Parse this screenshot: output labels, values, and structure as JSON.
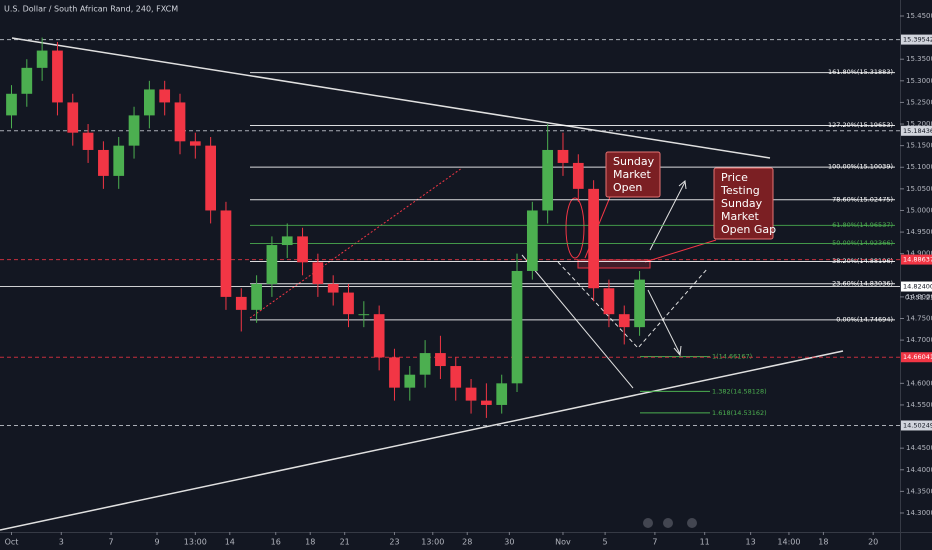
{
  "chart_data": {
    "type": "candlestick",
    "title": "U.S. Dollar / South African Rand, 240, FXCM",
    "x": [
      0,
      4,
      8,
      12,
      16,
      20,
      24,
      28,
      32,
      36,
      40,
      44,
      48,
      52,
      56,
      60,
      64,
      68,
      72,
      76,
      80,
      84,
      88,
      92,
      96,
      100,
      104,
      108,
      112,
      116,
      120,
      124,
      128,
      132,
      136,
      140,
      144,
      148,
      152,
      156,
      160,
      164
    ],
    "open": [
      15.22,
      15.27,
      15.33,
      15.37,
      15.25,
      15.18,
      15.14,
      15.08,
      15.15,
      15.22,
      15.28,
      15.25,
      15.16,
      15.15,
      15.0,
      14.8,
      14.77,
      14.83,
      14.92,
      14.94,
      14.88,
      14.83,
      14.81,
      14.76,
      14.76,
      14.66,
      14.59,
      14.62,
      14.67,
      14.64,
      14.59,
      14.56,
      14.55,
      14.6,
      14.86,
      15.0,
      15.14,
      15.11,
      15.05,
      14.82,
      14.76,
      14.73
    ],
    "high": [
      15.29,
      15.35,
      15.4,
      15.39,
      15.27,
      15.2,
      15.16,
      15.17,
      15.24,
      15.3,
      15.3,
      15.27,
      15.18,
      15.17,
      15.02,
      14.82,
      14.85,
      14.94,
      14.97,
      14.96,
      14.9,
      14.85,
      14.83,
      14.79,
      14.78,
      14.68,
      14.64,
      14.7,
      14.71,
      14.66,
      14.61,
      14.6,
      14.62,
      14.9,
      15.02,
      15.2,
      15.18,
      15.13,
      15.07,
      14.84,
      14.78,
      14.86
    ],
    "low": [
      15.19,
      15.24,
      15.3,
      15.22,
      15.15,
      15.11,
      15.05,
      15.05,
      15.12,
      15.19,
      15.22,
      15.13,
      15.12,
      14.97,
      14.77,
      14.72,
      14.74,
      14.8,
      14.89,
      14.85,
      14.8,
      14.78,
      14.73,
      14.73,
      14.63,
      14.56,
      14.56,
      14.59,
      14.61,
      14.56,
      14.53,
      14.52,
      14.53,
      14.58,
      14.84,
      14.97,
      15.08,
      15.02,
      14.79,
      14.73,
      14.69,
      14.71
    ],
    "close": [
      15.27,
      15.33,
      15.37,
      15.25,
      15.18,
      15.14,
      15.08,
      15.15,
      15.22,
      15.28,
      15.25,
      15.16,
      15.15,
      15.0,
      14.8,
      14.77,
      14.83,
      14.92,
      14.94,
      14.88,
      14.83,
      14.81,
      14.76,
      14.76,
      14.66,
      14.59,
      14.62,
      14.67,
      14.64,
      14.59,
      14.56,
      14.55,
      14.6,
      14.86,
      15.0,
      15.14,
      15.11,
      15.05,
      14.82,
      14.76,
      14.73,
      14.84
    ],
    "up_color": "#4caf50",
    "down_color": "#f23645",
    "xlim": [
      -3,
      232
    ],
    "xticks": [
      {
        "value": 0,
        "label": "Oct"
      },
      {
        "value": 13,
        "label": "3"
      },
      {
        "value": 26,
        "label": "7"
      },
      {
        "value": 38,
        "label": "9"
      },
      {
        "value": 48,
        "label": "13:00"
      },
      {
        "value": 57,
        "label": "14"
      },
      {
        "value": 69,
        "label": "16"
      },
      {
        "value": 78,
        "label": "18"
      },
      {
        "value": 87,
        "label": "21"
      },
      {
        "value": 100,
        "label": "23"
      },
      {
        "value": 110,
        "label": "13:00"
      },
      {
        "value": 119,
        "label": "28"
      },
      {
        "value": 130,
        "label": "30"
      },
      {
        "value": 144,
        "label": "Nov"
      },
      {
        "value": 155,
        "label": "5"
      },
      {
        "value": 168,
        "label": "7"
      },
      {
        "value": 181,
        "label": "11"
      },
      {
        "value": 193,
        "label": "13"
      },
      {
        "value": 203,
        "label": "14:00"
      },
      {
        "value": 212,
        "label": "18"
      },
      {
        "value": 225,
        "label": "20"
      }
    ],
    "ylim": [
      14.256,
      15.487
    ],
    "yticks": [
      {
        "value": 15.45,
        "label": "15.45000"
      },
      {
        "value": 15.35,
        "label": "15.35000"
      },
      {
        "value": 15.3,
        "label": "15.30000"
      },
      {
        "value": 15.25,
        "label": "15.25000"
      },
      {
        "value": 15.2,
        "label": "15.20000"
      },
      {
        "value": 15.15,
        "label": "15.15000"
      },
      {
        "value": 15.1,
        "label": "15.10000"
      },
      {
        "value": 15.05,
        "label": "15.05000"
      },
      {
        "value": 15.0,
        "label": "15.00000"
      },
      {
        "value": 14.95,
        "label": "14.95000"
      },
      {
        "value": 14.9,
        "label": "14.90000"
      },
      {
        "value": 14.8,
        "label": "14.80000"
      },
      {
        "value": 14.75,
        "label": "14.75000"
      },
      {
        "value": 14.7,
        "label": "14.70000"
      },
      {
        "value": 14.6,
        "label": "14.60000"
      },
      {
        "value": 14.55,
        "label": "14.55000"
      },
      {
        "value": 14.45,
        "label": "14.45000"
      },
      {
        "value": 14.4,
        "label": "14.40000"
      },
      {
        "value": 14.35,
        "label": "14.35000"
      },
      {
        "value": 14.3,
        "label": "14.30000"
      }
    ],
    "price_markers": [
      {
        "value": 15.39542,
        "label": "15.39542",
        "color": "#d1d4dc",
        "style": "dashed"
      },
      {
        "value": 15.18436,
        "label": "15.18436",
        "color": "#d1d4dc",
        "style": "dashed"
      },
      {
        "value": 14.88637,
        "label": "14.88637",
        "color": "#f23645",
        "style": "dashed"
      },
      {
        "value": 14.824,
        "label": "14.82400",
        "color": "#ffffff",
        "style": "solid"
      },
      {
        "value": 14.66041,
        "label": "14.66041",
        "color": "#f23645",
        "style": "dashed"
      },
      {
        "value": 14.50249,
        "label": "14.50249",
        "color": "#d1d4dc",
        "style": "dashed"
      }
    ],
    "countdown": "01:51:21",
    "fib_levels": [
      {
        "value": 15.31883,
        "label": "161.80%(15.31883)",
        "color": "#ffffff"
      },
      {
        "value": 15.19653,
        "label": "127.20%(15.19653)",
        "color": "#ffffff"
      },
      {
        "value": 15.10039,
        "label": "100.00%(15.10039)",
        "color": "#ffffff"
      },
      {
        "value": 15.02475,
        "label": "78.60%(15.02475)",
        "color": "#ffffff"
      },
      {
        "value": 14.96537,
        "label": "61.80%(14.96537)",
        "color": "#4caf50"
      },
      {
        "value": 14.92366,
        "label": "50.00%(14.92366)",
        "color": "#4caf50"
      },
      {
        "value": 14.88196,
        "label": "38.20%(14.88196)",
        "color": "#ffffff"
      },
      {
        "value": 14.83036,
        "label": "23.60%(14.83036)",
        "color": "#ffffff"
      },
      {
        "value": 14.74694,
        "label": "0.00%(14.74694)",
        "color": "#ffffff"
      }
    ],
    "extension_levels": [
      {
        "value": 14.66167,
        "label": "1(14.66167)"
      },
      {
        "value": 14.58128,
        "label": "1.382(14.58128)"
      },
      {
        "value": 14.53162,
        "label": "1.618(14.53162)"
      }
    ],
    "annotations": [
      {
        "lines": [
          "Sunday",
          "Market",
          "Open"
        ]
      },
      {
        "lines": [
          "Price",
          "Testing",
          "Sunday",
          "Market",
          "Open Gap"
        ]
      }
    ]
  }
}
